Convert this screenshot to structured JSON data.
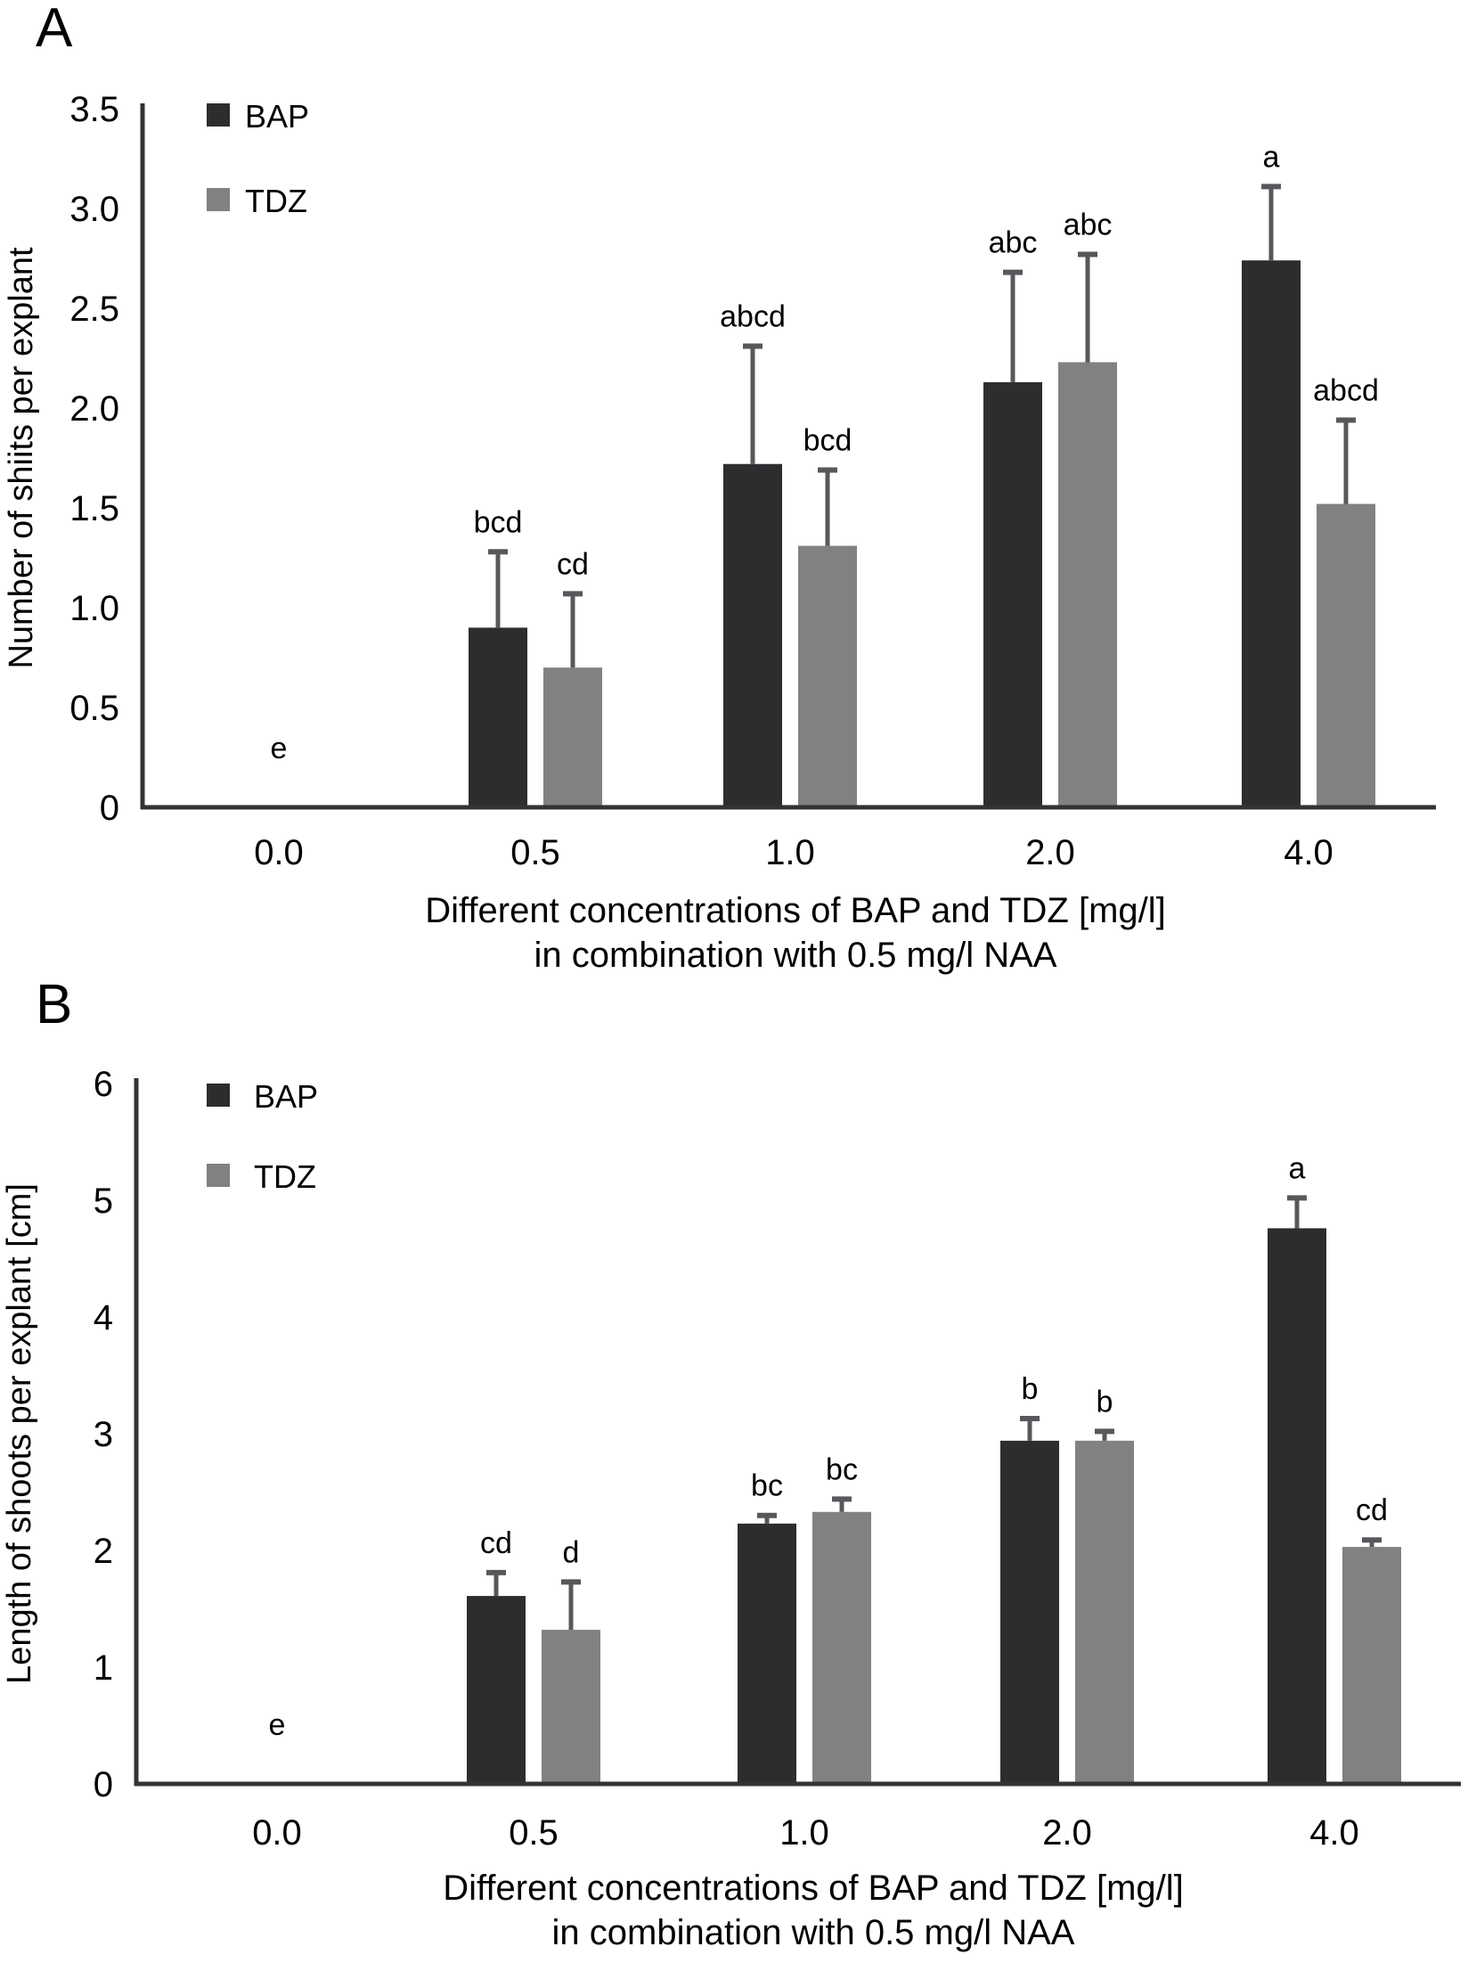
{
  "chart_data": [
    {
      "panel": "A",
      "type": "bar",
      "title": "",
      "xlabel": "Different concentrations of BAP and TDZ [mg/l]\nin combination with 0.5 mg/l NAA",
      "xlabel_lines": [
        "Different concentrations of BAP and TDZ [mg/l]",
        "in combination with 0.5 mg/l NAA"
      ],
      "ylabel": "Number of shiits per explant",
      "ylim": [
        0,
        3.5
      ],
      "yticks": [
        0,
        0.5,
        1.0,
        1.5,
        2.0,
        2.5,
        3.0,
        3.5
      ],
      "ytick_labels": [
        "0",
        "0.5",
        "1.0",
        "1.5",
        "2.0",
        "2.5",
        "3.0",
        "3.5"
      ],
      "categories": [
        "0.0",
        "0.5",
        "1.0",
        "2.0",
        "4.0"
      ],
      "grid": false,
      "legend_position": "top-left",
      "series": [
        {
          "name": "BAP",
          "color": "#2f2c30",
          "values": [
            0,
            0.9,
            1.72,
            2.13,
            2.74
          ],
          "error": [
            0,
            0.38,
            0.59,
            0.55,
            0.37
          ],
          "labels": [
            "e",
            "bcd",
            "abcd",
            "abc",
            "a"
          ]
        },
        {
          "name": "TDZ",
          "color": "#818184",
          "values": [
            0,
            0.7,
            1.31,
            2.23,
            1.52
          ],
          "error": [
            0,
            0.37,
            0.38,
            0.54,
            0.42
          ],
          "labels": [
            "",
            "cd",
            "bcd",
            "abc",
            "abcd"
          ]
        }
      ],
      "error_bar_color": "#58585c"
    },
    {
      "panel": "B",
      "type": "bar",
      "title": "",
      "xlabel": "Different concentrations of BAP and TDZ [mg/l]\nin combination with 0.5 mg/l NAA",
      "xlabel_lines": [
        "Different concentrations of BAP and TDZ [mg/l]",
        "in combination with 0.5 mg/l NAA"
      ],
      "ylabel": "Length of shoots per explant [cm]",
      "ylim": [
        0,
        6
      ],
      "yticks": [
        0,
        1,
        2,
        3,
        4,
        5,
        6
      ],
      "ytick_labels": [
        "0",
        "1",
        "2",
        "3",
        "4",
        "5",
        "6"
      ],
      "categories": [
        "0.0",
        "0.5",
        "1.0",
        "2.0",
        "4.0"
      ],
      "grid": false,
      "legend_position": "top-left",
      "series": [
        {
          "name": "BAP",
          "color": "#2f2c30",
          "values": [
            0,
            1.61,
            2.23,
            2.94,
            4.76
          ],
          "error": [
            0,
            0.2,
            0.07,
            0.19,
            0.26
          ],
          "labels": [
            "e",
            "cd",
            "bc",
            "b",
            "a"
          ]
        },
        {
          "name": "TDZ",
          "color": "#818184",
          "values": [
            0,
            1.32,
            2.33,
            2.94,
            2.03
          ],
          "error": [
            0,
            0.41,
            0.11,
            0.08,
            0.06
          ],
          "labels": [
            "",
            "d",
            "bc",
            "b",
            "cd"
          ]
        }
      ],
      "error_bar_color": "#58585c"
    }
  ],
  "panels": [
    {
      "letter": "A"
    },
    {
      "letter": "B"
    }
  ]
}
